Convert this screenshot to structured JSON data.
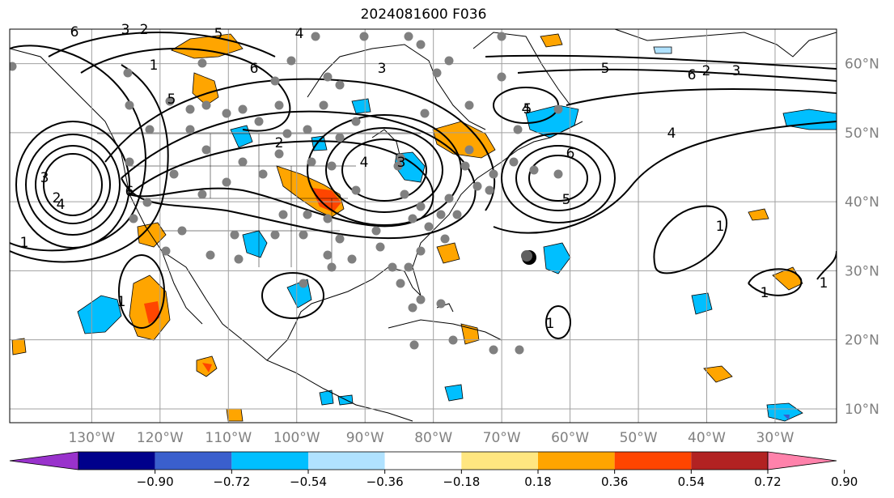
{
  "title": "2024081600 F036",
  "map": {
    "projection": "plate-carree",
    "lon_range": [
      -142,
      -21
    ],
    "lat_range": [
      8,
      65
    ],
    "lat_labels": [
      "10°N",
      "20°N",
      "30°N",
      "40°N",
      "50°N",
      "60°N"
    ],
    "lat_values": [
      10,
      20,
      30,
      40,
      50,
      60
    ],
    "lon_labels": [
      "130°W",
      "120°W",
      "110°W",
      "100°W",
      "90°W",
      "80°W",
      "70°W",
      "60°W",
      "50°W",
      "40°W",
      "30°W"
    ],
    "lon_values": [
      -130,
      -120,
      -110,
      -100,
      -90,
      -80,
      -70,
      -60,
      -50,
      -40,
      -30
    ],
    "grid": true,
    "contour_labels": [
      "6",
      "5",
      "4",
      "3",
      "2",
      "1",
      "5",
      "6",
      "2",
      "3",
      "4",
      "3",
      "4",
      "5",
      "6",
      "2",
      "3",
      "4",
      "5",
      "6",
      "1",
      "1",
      "1",
      "1",
      "1",
      "1",
      "2",
      "3",
      "4",
      "5",
      "6"
    ],
    "storm_marker": {
      "lon": -66,
      "lat": 32
    }
  },
  "colorbar": {
    "ticks": [
      "−0.90",
      "−0.72",
      "−0.54",
      "−0.36",
      "−0.18",
      "0.18",
      "0.36",
      "0.54",
      "0.72",
      "0.90"
    ],
    "colors": [
      "#9932cc",
      "#00008b",
      "#3a5fcd",
      "#00bfff",
      "#b0e2ff",
      "#ffffff",
      "#ffe680",
      "#ffa500",
      "#ff4500",
      "#b22222",
      "#ff82ab"
    ]
  }
}
